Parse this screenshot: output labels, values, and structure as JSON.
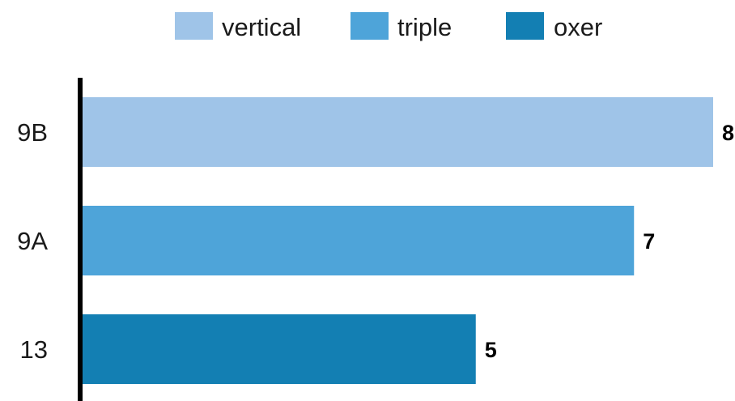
{
  "chart_data": {
    "type": "bar",
    "orientation": "horizontal",
    "categories": [
      "9B",
      "9A",
      "13"
    ],
    "values": [
      8,
      7,
      5
    ],
    "series": [
      {
        "name": "vertical",
        "values": [
          8,
          null,
          null
        ],
        "color": "#9fc4e8"
      },
      {
        "name": "triple",
        "values": [
          null,
          7,
          null
        ],
        "color": "#4ea4d9"
      },
      {
        "name": "oxer",
        "values": [
          null,
          null,
          5
        ],
        "color": "#137fb3"
      }
    ],
    "title": "",
    "xlabel": "",
    "ylabel": "",
    "xlim": [
      0,
      8
    ],
    "legend": "top-center",
    "grid": false,
    "data_labels": true,
    "axis_line_color": "#000000"
  }
}
